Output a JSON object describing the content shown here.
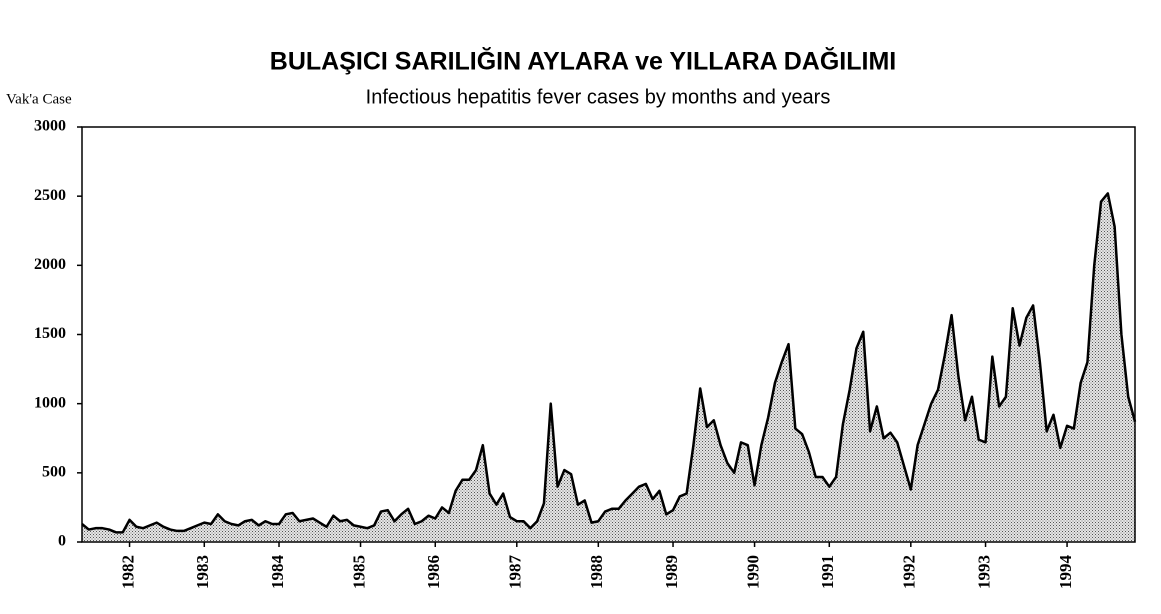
{
  "chart_data": {
    "type": "area",
    "title": "BULAŞICI SARILIĞIN AYLARA ve YILLARA DAĞILIMI",
    "subtitle": "Infectious hepatitis fever cases by months and years",
    "y_label": "Vak'a Case",
    "categories": [
      null,
      null,
      null,
      null,
      null,
      null,
      null,
      "1982",
      null,
      null,
      null,
      null,
      null,
      null,
      null,
      null,
      null,
      null,
      "1983",
      null,
      null,
      null,
      null,
      null,
      null,
      null,
      null,
      null,
      null,
      "1984",
      null,
      null,
      null,
      null,
      null,
      null,
      null,
      null,
      null,
      null,
      null,
      "1985",
      null,
      null,
      null,
      null,
      null,
      null,
      null,
      null,
      null,
      null,
      "1986",
      null,
      null,
      null,
      null,
      null,
      null,
      null,
      null,
      null,
      null,
      null,
      "1987",
      null,
      null,
      null,
      null,
      null,
      null,
      null,
      null,
      null,
      null,
      null,
      "1988",
      null,
      null,
      null,
      null,
      null,
      null,
      null,
      null,
      null,
      null,
      "1989",
      null,
      null,
      null,
      null,
      null,
      null,
      null,
      null,
      null,
      null,
      null,
      "1990",
      null,
      null,
      null,
      null,
      null,
      null,
      null,
      null,
      null,
      null,
      "1991",
      null,
      null,
      null,
      null,
      null,
      null,
      null,
      null,
      null,
      null,
      null,
      "1992",
      null,
      null,
      null,
      null,
      null,
      null,
      null,
      null,
      null,
      null,
      "1993",
      null,
      null,
      null,
      null,
      null,
      null,
      null,
      null,
      null,
      null,
      null,
      "1994",
      null,
      null,
      null,
      null,
      null,
      null,
      null,
      null,
      null,
      null
    ],
    "values": [
      130,
      90,
      100,
      100,
      90,
      70,
      70,
      160,
      110,
      100,
      120,
      140,
      110,
      90,
      80,
      80,
      100,
      120,
      140,
      130,
      200,
      150,
      130,
      120,
      150,
      160,
      120,
      150,
      130,
      130,
      200,
      210,
      150,
      160,
      170,
      140,
      110,
      190,
      150,
      160,
      120,
      110,
      100,
      120,
      220,
      230,
      150,
      200,
      240,
      130,
      150,
      190,
      170,
      250,
      210,
      370,
      450,
      450,
      520,
      700,
      350,
      270,
      350,
      180,
      150,
      150,
      100,
      150,
      280,
      1000,
      400,
      520,
      490,
      270,
      300,
      140,
      150,
      220,
      240,
      240,
      300,
      350,
      400,
      420,
      310,
      370,
      200,
      230,
      330,
      350,
      700,
      1110,
      830,
      880,
      700,
      570,
      500,
      720,
      700,
      410,
      700,
      900,
      1150,
      1300,
      1430,
      820,
      780,
      650,
      470,
      470,
      400,
      470,
      850,
      1100,
      1400,
      1520,
      800,
      980,
      750,
      790,
      720,
      550,
      380,
      700,
      850,
      1000,
      1100,
      1350,
      1640,
      1200,
      880,
      1050,
      740,
      720,
      1340,
      980,
      1050,
      1690,
      1420,
      1620,
      1710,
      1300,
      800,
      920,
      680,
      840,
      820,
      1150,
      1300,
      2000,
      2460,
      2520,
      2280,
      1500,
      1050,
      870
    ],
    "color": "#b5b5b5",
    "ylim": [
      0,
      3000
    ],
    "yticks": [
      0,
      500,
      1000,
      1500,
      2000,
      2500,
      3000
    ],
    "grid": false
  }
}
